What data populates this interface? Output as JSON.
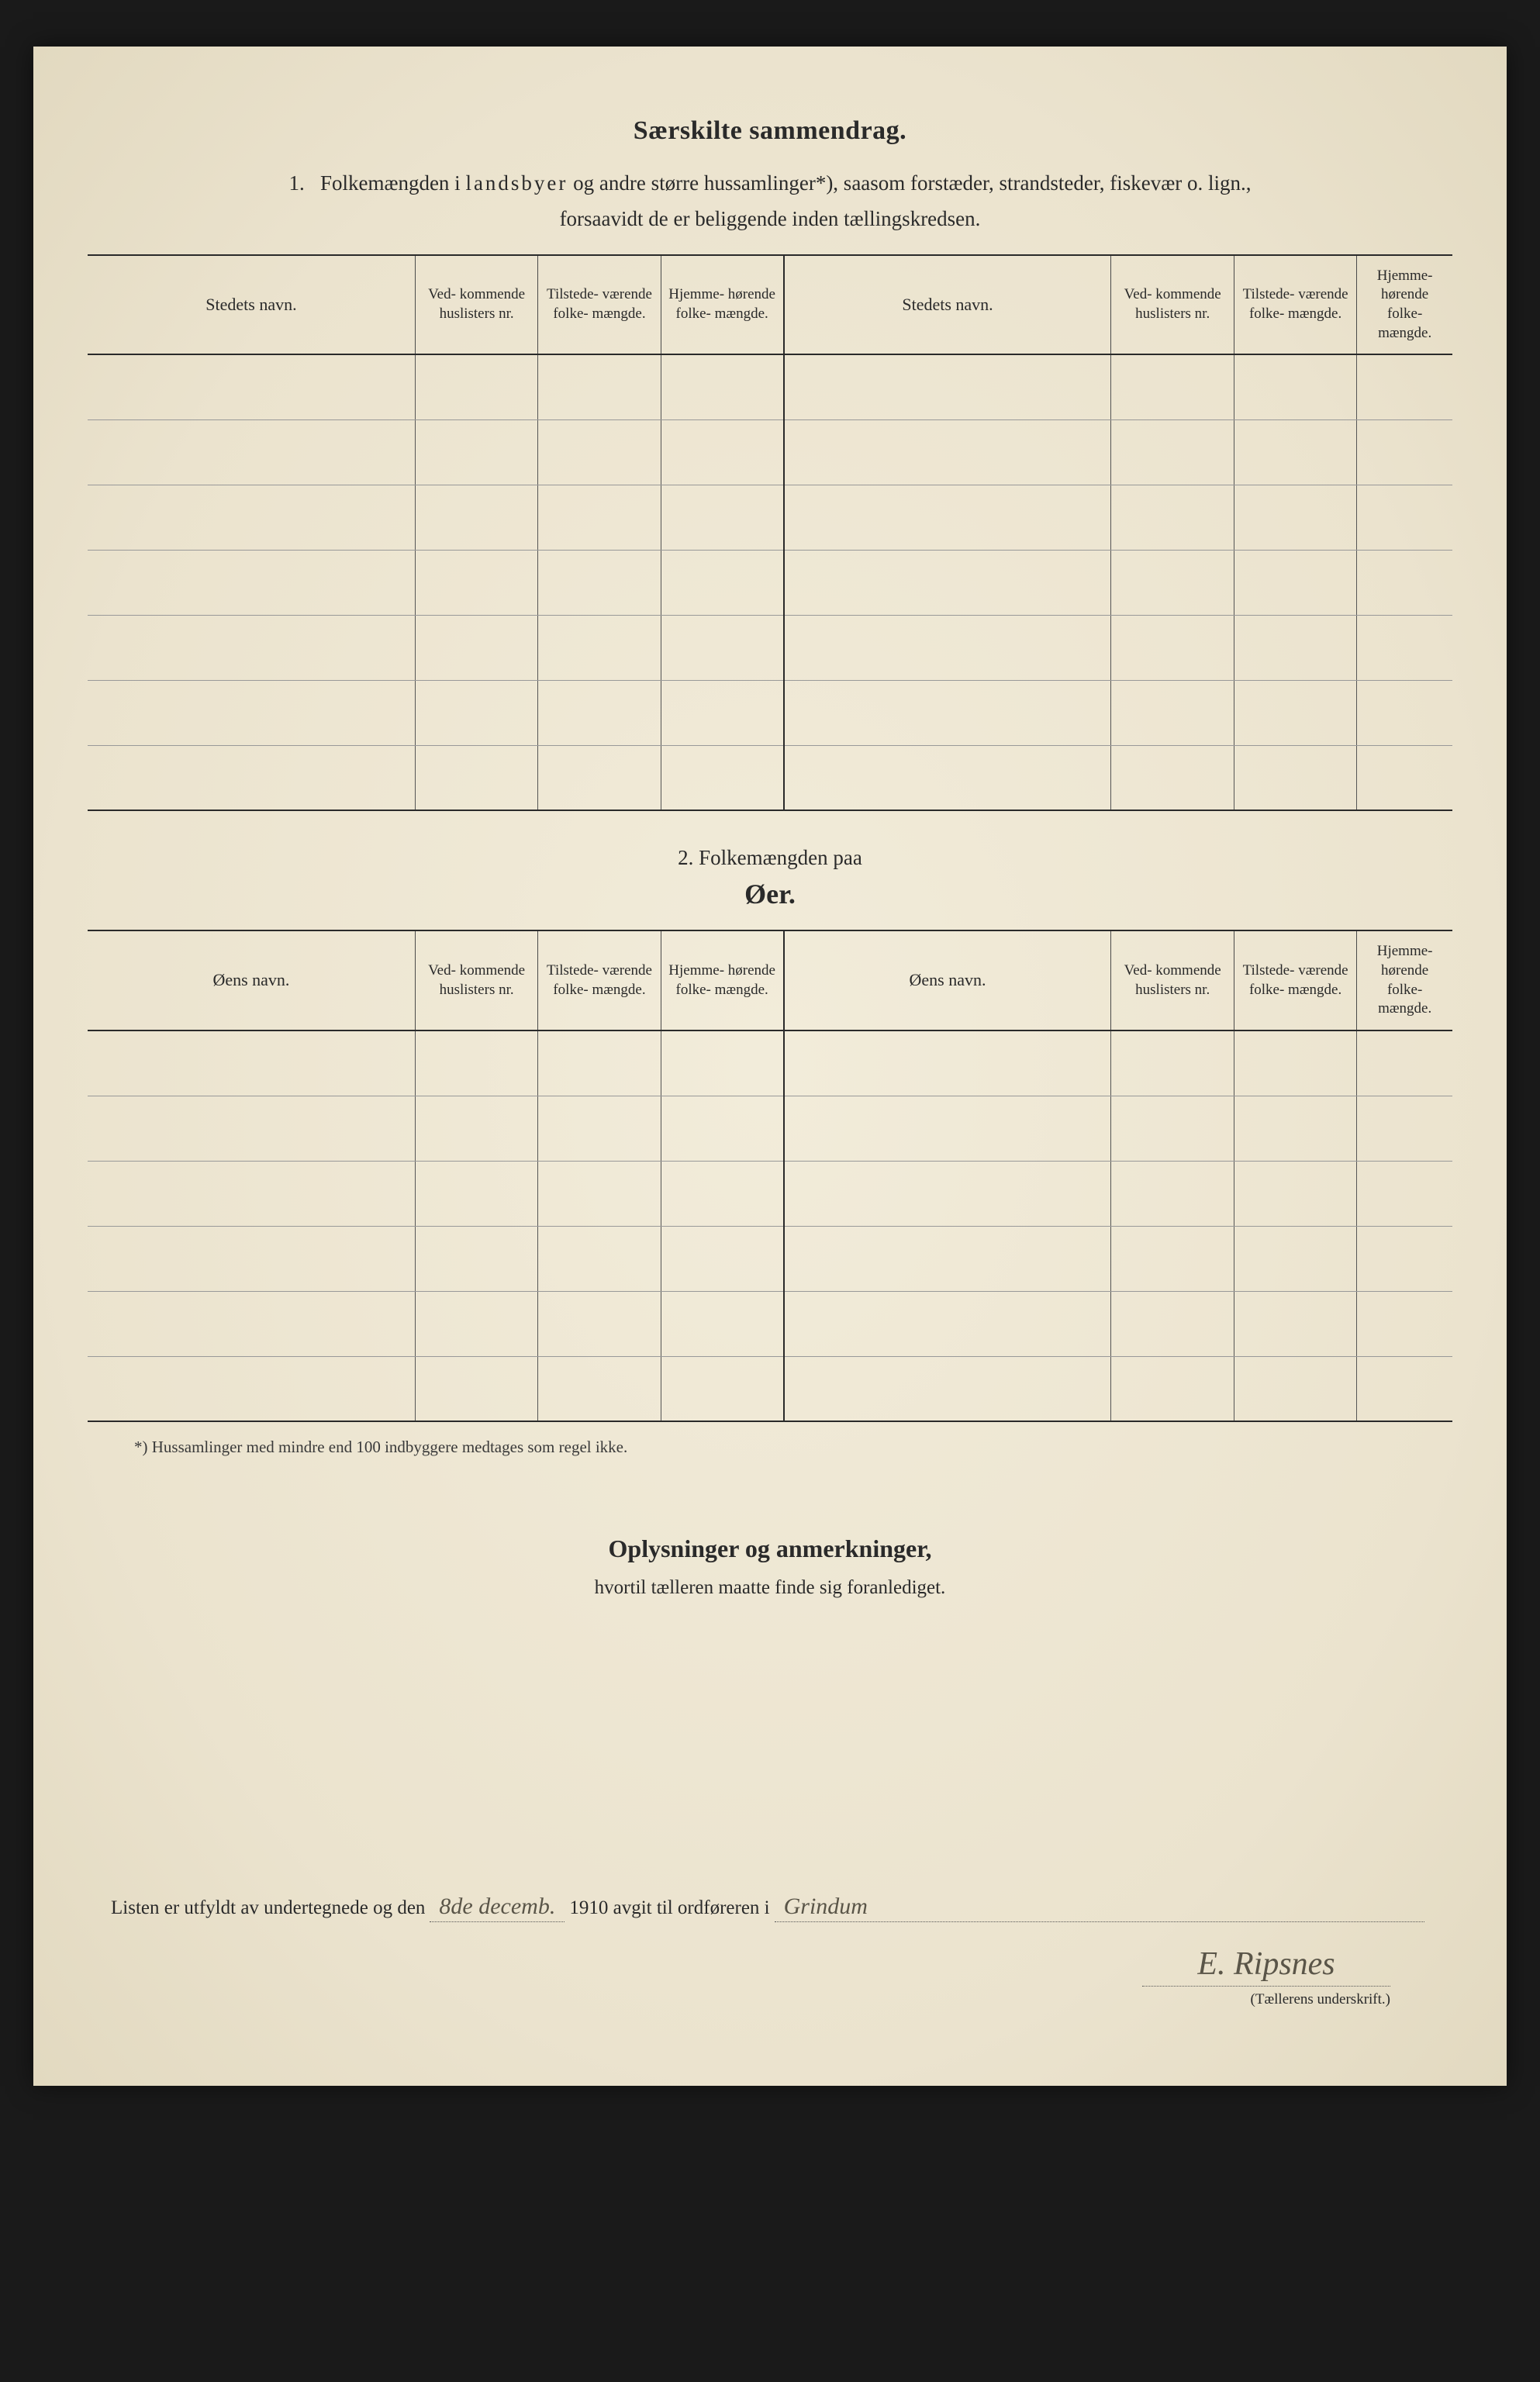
{
  "colors": {
    "paper_bg": "#f0ead8",
    "paper_edge": "#e2d9c0",
    "page_bg": "#1a1a1a",
    "text": "#2a2a2a",
    "rule_heavy": "#2a2a2a",
    "rule_light": "#999999",
    "handwriting": "#5a5548"
  },
  "fonts": {
    "body_family": "Georgia, Times New Roman, serif",
    "handwriting_family": "Brush Script MT, cursive",
    "title_size_pt": 26,
    "body_size_pt": 20,
    "header_cell_size_pt": 14
  },
  "main_title": "Særskilte sammendrag.",
  "section1": {
    "number": "1.",
    "intro_pre": "Folkemængden i ",
    "intro_spaced": "landsbyer",
    "intro_post": " og andre større hussamlinger*), saasom forstæder, strandsteder, fiskevær o. lign.,",
    "intro_line2": "forsaavidt de er beliggende inden tællingskredsen.",
    "columns": {
      "name": "Stedets navn.",
      "c1": "Ved-\nkommende\nhuslisters\nnr.",
      "c2": "Tilstede-\nværende\nfolke-\nmængde.",
      "c3": "Hjemme-\nhørende\nfolke-\nmængde."
    },
    "row_count": 7
  },
  "section2": {
    "heading_pre": "2.    Folkemængden paa",
    "heading_title": "Øer.",
    "columns": {
      "name": "Øens navn.",
      "c1": "Ved-\nkommende\nhuslisters\nnr.",
      "c2": "Tilstede-\nværende\nfolke-\nmængde.",
      "c3": "Hjemme-\nhørende\nfolke-\nmængde."
    },
    "row_count": 6
  },
  "footnote": "*) Hussamlinger med mindre end 100 indbyggere medtages som regel ikke.",
  "remarks": {
    "title": "Oplysninger og anmerkninger,",
    "sub": "hvortil tælleren maatte finde sig foranlediget."
  },
  "signature": {
    "line_pre": "Listen er utfyldt av undertegnede og den",
    "date_hand": "8de decemb.",
    "year_print": " 1910 avgit til ordføreren i",
    "place_hand": "Grindum",
    "sig_hand": "E. Ripsnes",
    "sig_label": "(Tællerens underskrift.)"
  }
}
